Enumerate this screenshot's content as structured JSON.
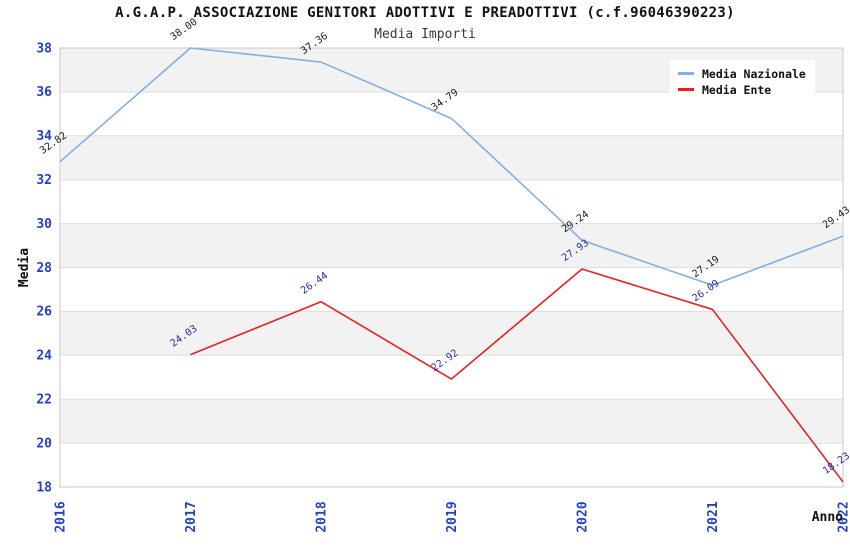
{
  "chart_data": {
    "type": "line",
    "title": "A.G.A.P. ASSOCIAZIONE GENITORI ADOTTIVI E PREADOTTIVI (c.f.96046390223)",
    "subtitle": "Media Importi",
    "xlabel": "Anno",
    "ylabel": "Media",
    "categories": [
      "2016",
      "2017",
      "2018",
      "2019",
      "2020",
      "2021",
      "2022"
    ],
    "ylim": [
      18,
      38
    ],
    "ytick_step": 2,
    "grid": "horizontal gridlines every 2 units with alternating light-gray bands",
    "legend_position": "upper right",
    "tick_color": "#2142C8",
    "band_color": "#f2f2f2",
    "gridline_color": "#dedede",
    "border_color": "#c9c9c9",
    "series": [
      {
        "name": "Media Nazionale",
        "color": "#7FB1E3",
        "label_color": "#1a1a1a",
        "values": [
          32.82,
          38.0,
          37.36,
          34.79,
          29.24,
          27.19,
          29.43
        ]
      },
      {
        "name": "Media Ente",
        "color": "#E92121",
        "label_color": "#2B2BA8",
        "values": [
          null,
          24.03,
          26.44,
          22.92,
          27.93,
          26.09,
          18.23
        ]
      }
    ]
  }
}
